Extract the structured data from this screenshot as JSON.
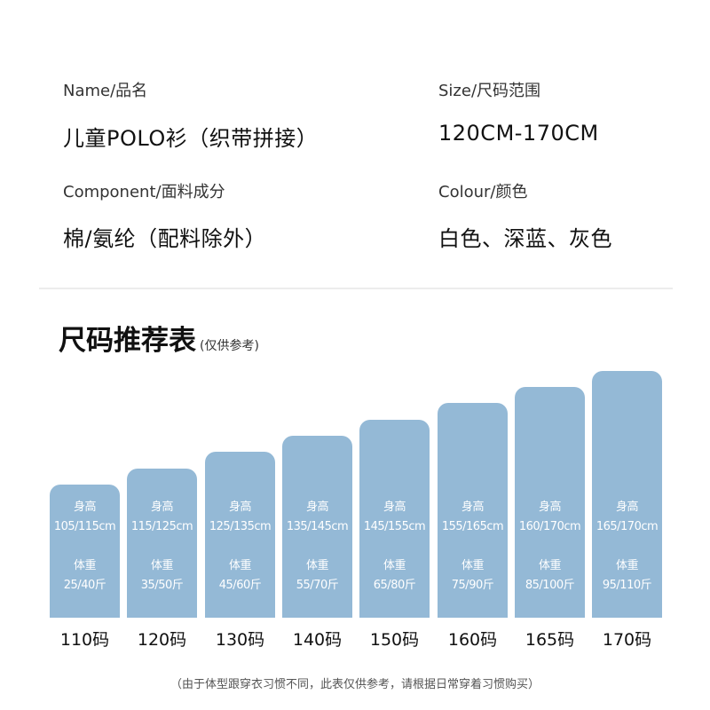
{
  "info": {
    "name_label": "Name/品名",
    "name_value": "儿童POLO衫（织带拼接）",
    "size_label": "Size/尺码范围",
    "size_value": "120CM-170CM",
    "component_label": "Component/面料成分",
    "component_value": "棉/氨纶（配料除外）",
    "colour_label": "Colour/颜色",
    "colour_value": "白色、深蓝、灰色"
  },
  "chart_title": "尺码推荐表",
  "chart_note": "(仅供参考)",
  "colors": {
    "bar": "#94b9d6"
  },
  "chart_data": {
    "type": "bar",
    "categories": [
      "110码",
      "120码",
      "130码",
      "140码",
      "150码",
      "160码",
      "165码",
      "170码"
    ],
    "series": [
      {
        "values": [
          1,
          2,
          3,
          4,
          5,
          6,
          7,
          8
        ]
      }
    ],
    "bar_labels": [
      {
        "height_label": "身高",
        "height": "105/115cm",
        "weight_label": "体重",
        "weight": "25/40斤"
      },
      {
        "height_label": "身高",
        "height": "115/125cm",
        "weight_label": "体重",
        "weight": "35/50斤"
      },
      {
        "height_label": "身高",
        "height": "125/135cm",
        "weight_label": "体重",
        "weight": "45/60斤"
      },
      {
        "height_label": "身高",
        "height": "135/145cm",
        "weight_label": "体重",
        "weight": "55/70斤"
      },
      {
        "height_label": "身高",
        "height": "145/155cm",
        "weight_label": "体重",
        "weight": "65/80斤"
      },
      {
        "height_label": "身高",
        "height": "155/165cm",
        "weight_label": "体重",
        "weight": "75/90斤"
      },
      {
        "height_label": "身高",
        "height": "160/170cm",
        "weight_label": "体重",
        "weight": "85/100斤"
      },
      {
        "height_label": "身高",
        "height": "165/170cm",
        "weight_label": "体重",
        "weight": "95/110斤"
      }
    ],
    "title": "尺码推荐表",
    "xlabel": "",
    "ylabel": "",
    "grid": false
  },
  "footnote": "（由于体型跟穿衣习惯不同，此表仅供参考，请根据日常穿着习惯购买）"
}
